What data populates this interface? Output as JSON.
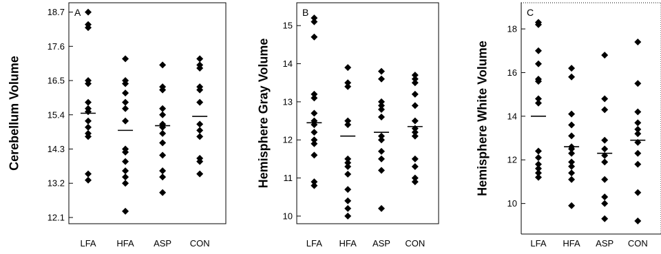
{
  "chart_data": [
    {
      "type": "scatter",
      "panel": "A",
      "ylabel": "Cerebellum Volume",
      "categories": [
        "LFA",
        "HFA",
        "ASP",
        "CON"
      ],
      "yticks": [
        12.1,
        13.2,
        14.3,
        15.4,
        16.5,
        17.6,
        18.7
      ],
      "ytick_labels": [
        "12.1",
        "13.2",
        "14.3",
        "15.4",
        "16.5",
        "17.6",
        "18.7"
      ],
      "ylim": [
        11.9,
        19.0
      ],
      "points": [
        [
          18.7,
          18.3,
          18.2,
          16.5,
          16.4,
          15.8,
          15.6,
          15.5,
          15.2,
          15.0,
          14.8,
          14.7,
          13.5,
          13.3
        ],
        [
          17.2,
          16.5,
          16.4,
          16.1,
          15.8,
          15.6,
          15.2,
          14.3,
          14.2,
          13.9,
          13.6,
          13.4,
          13.2,
          12.3
        ],
        [
          17.0,
          16.3,
          16.2,
          15.6,
          15.4,
          15.1,
          15.0,
          14.8,
          14.5,
          14.1,
          13.6,
          13.4,
          12.9
        ],
        [
          17.2,
          17.0,
          16.9,
          16.3,
          16.2,
          15.8,
          15.1,
          14.9,
          14.7,
          14.0,
          13.9,
          13.5
        ]
      ],
      "means": [
        15.45,
        14.9,
        15.05,
        15.35
      ]
    },
    {
      "type": "scatter",
      "panel": "B",
      "ylabel": "Hemisphere Gray Volume",
      "categories": [
        "LFA",
        "HFA",
        "ASP",
        "CON"
      ],
      "yticks": [
        10,
        11,
        12,
        13,
        14,
        15
      ],
      "ytick_labels": [
        "10",
        "11",
        "12",
        "13",
        "14",
        "15"
      ],
      "ylim": [
        9.8,
        15.6
      ],
      "points": [
        [
          15.2,
          15.1,
          14.7,
          13.2,
          13.1,
          12.7,
          12.5,
          12.4,
          12.2,
          12.0,
          11.9,
          11.6,
          10.9,
          10.8
        ],
        [
          13.9,
          13.5,
          13.4,
          12.5,
          12.4,
          11.5,
          11.4,
          11.3,
          11.1,
          10.7,
          10.4,
          10.2,
          10.0
        ],
        [
          13.8,
          13.6,
          13.0,
          12.9,
          12.8,
          12.6,
          12.1,
          12.0,
          11.7,
          11.5,
          11.2,
          10.2
        ],
        [
          13.7,
          13.6,
          13.5,
          13.2,
          12.9,
          12.5,
          12.3,
          12.2,
          12.1,
          11.5,
          11.3,
          11.0,
          10.9
        ]
      ],
      "means": [
        12.45,
        12.1,
        12.2,
        12.35
      ]
    },
    {
      "type": "scatter",
      "panel": "C",
      "ylabel": "Hemisphere White Volume",
      "categories": [
        "LFA",
        "HFA",
        "ASP",
        "CON"
      ],
      "yticks": [
        10,
        12,
        14,
        16,
        18
      ],
      "ytick_labels": [
        "10",
        "12",
        "14",
        "16",
        "18"
      ],
      "ylim": [
        8.6,
        19.2
      ],
      "points": [
        [
          18.3,
          18.2,
          17.0,
          16.4,
          15.7,
          15.6,
          14.8,
          14.6,
          12.4,
          12.1,
          11.8,
          11.6,
          11.4,
          11.2
        ],
        [
          16.2,
          15.8,
          14.1,
          13.6,
          13.1,
          12.6,
          12.5,
          12.3,
          11.9,
          11.7,
          11.4,
          11.1,
          9.9
        ],
        [
          16.8,
          14.8,
          14.3,
          12.9,
          12.5,
          12.2,
          11.9,
          11.1,
          10.3,
          10.0,
          9.3
        ],
        [
          17.4,
          15.5,
          14.2,
          13.7,
          13.4,
          13.2,
          12.8,
          12.3,
          11.8,
          10.5,
          9.2
        ]
      ],
      "means": [
        14.0,
        12.6,
        12.3,
        12.9
      ]
    }
  ]
}
